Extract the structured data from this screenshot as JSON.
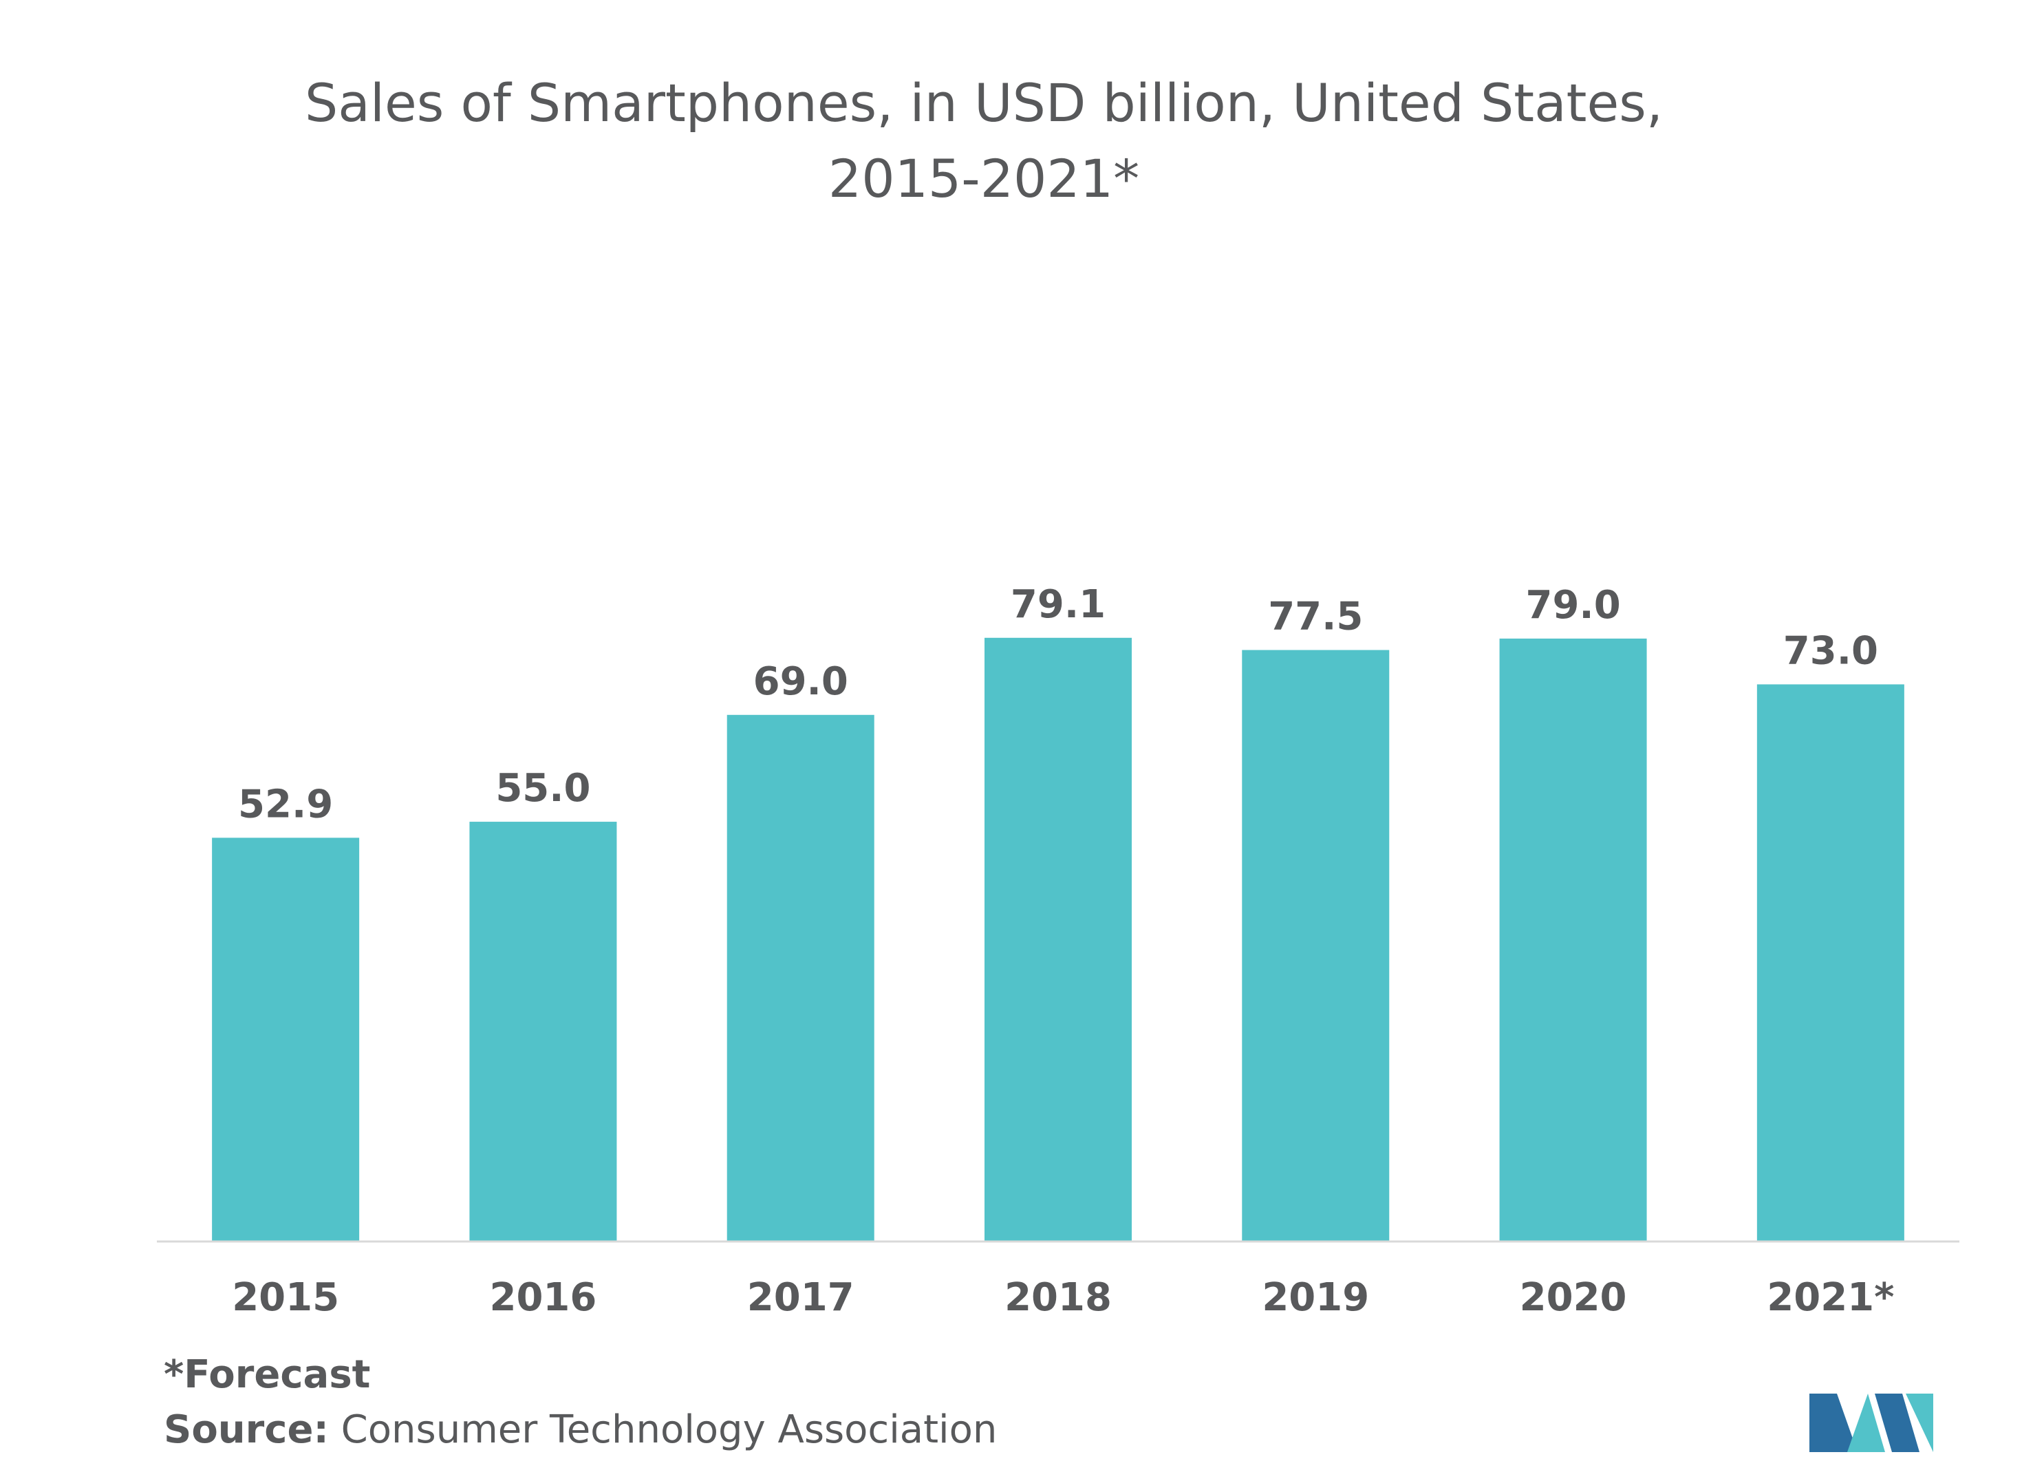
{
  "chart_data": {
    "type": "bar",
    "title_lines": [
      "Sales of Smartphones, in USD billion, United States,",
      "2015-2021*"
    ],
    "categories": [
      "2015",
      "2016",
      "2017",
      "2018",
      "2019",
      "2020",
      "2021*"
    ],
    "values": [
      52.9,
      55.0,
      69.0,
      79.1,
      77.5,
      79.0,
      73.0
    ],
    "value_labels": [
      "52.9",
      "55.0",
      "69.0",
      "79.1",
      "77.5",
      "79.0",
      "73.0"
    ],
    "xlabel": "",
    "ylabel": "",
    "ylim": [
      0,
      90
    ],
    "grid": false,
    "legend": "none"
  },
  "footnote": "*Forecast",
  "source": {
    "label": "Source:",
    "text": "Consumer Technology Association"
  },
  "colors": {
    "bar": "#52c2c9",
    "axis": "#d9d9d9",
    "text": "#58595b",
    "logo_dark": "#2b6ea1",
    "logo_light": "#52c2c9"
  },
  "logo_icon": "mordor-intelligence-logo-icon"
}
